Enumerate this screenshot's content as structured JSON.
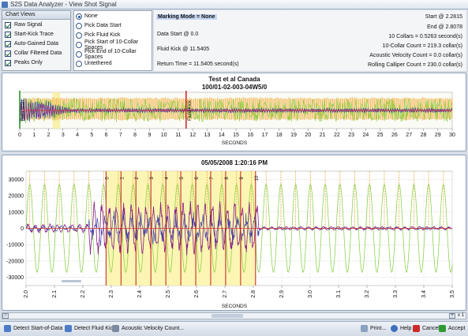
{
  "window": {
    "title": "S2S Data Analyzer - View Shot Signal"
  },
  "chart_views": {
    "header": "Chart Views",
    "items": [
      {
        "label": "Raw Signal",
        "checked": true
      },
      {
        "label": "Start-Kick Trace",
        "checked": true
      },
      {
        "label": "Auto-Gained Data",
        "checked": true
      },
      {
        "label": "Collar Filtered Data",
        "checked": true
      },
      {
        "label": "Peaks Only",
        "checked": true
      }
    ]
  },
  "marking": {
    "options": [
      {
        "label": "None",
        "selected": true
      },
      {
        "label": "Pick Data Start",
        "selected": false
      },
      {
        "label": "Pick Fluid Kick",
        "selected": false
      },
      {
        "label": "Pick Start of 10-Collar Spaces",
        "selected": false
      },
      {
        "label": "Pick End of 10-Collar Spaces",
        "selected": false
      },
      {
        "label": "Untethered",
        "selected": false
      }
    ]
  },
  "info": {
    "marking_mode": "Marking Mode = None",
    "data_start": "Data Start @ 0.0",
    "fluid_kick": "Fluid Kick @ 11.5405",
    "return_time": "Return Time = 11.5405 second(s)",
    "start": "Start @ 2.2815",
    "end": "End @ 2.8078",
    "collars": "10 Collars = 0.5263 second(s)",
    "collar_count": "10-Collar Count = 219.3 collar(s)",
    "acoustic_velocity": "Acoustic Velocity Count = 0.0 collar(s)",
    "rolling_caliper": "Rolling Calliper Count = 230.0 collar(s)"
  },
  "chart_data": [
    {
      "type": "line",
      "title": "Test et al Canada",
      "subtitle": "100/01-02-003-04W5/0",
      "xlabel": "SECONDS",
      "ylabel": "",
      "xlim": [
        0,
        30
      ],
      "x_ticks": [
        "0",
        "1",
        "2",
        "3",
        "4",
        "5",
        "6",
        "7",
        "8",
        "9",
        "10",
        "11",
        "12",
        "13",
        "14",
        "15",
        "16",
        "17",
        "18",
        "19",
        "20",
        "21",
        "22",
        "23",
        "24",
        "25",
        "26",
        "27",
        "28",
        "29",
        "30"
      ],
      "markers": [
        {
          "label": "Data Start",
          "x": 0.0
        },
        {
          "label": "Fluid Kick",
          "x": 11.5405
        }
      ],
      "highlight_x": [
        2.2815,
        2.8078
      ],
      "series": [
        {
          "color": "#f1b34a"
        },
        {
          "color": "#7fce3c"
        },
        {
          "color": "#2d3ea8"
        },
        {
          "color": "#8a1f8a"
        },
        {
          "color": "#d23a2a"
        }
      ]
    },
    {
      "type": "line",
      "title": "05/05/2008 1:20:16 PM",
      "xlabel": "SECONDS",
      "ylabel": "",
      "xlim": [
        2.0,
        3.5
      ],
      "ylim": [
        -35000,
        35000
      ],
      "x_ticks": [
        "2.0",
        "2.1",
        "2.2",
        "2.3",
        "2.4",
        "2.5",
        "2.6",
        "2.7",
        "2.8",
        "2.9",
        "3.0",
        "3.1",
        "3.2",
        "3.3",
        "3.4",
        "3.5"
      ],
      "y_ticks": [
        "30000",
        "20000",
        "10000",
        "0",
        "-10000",
        "-20000",
        "-30000"
      ],
      "highlight_x": [
        2.2815,
        2.8078
      ],
      "collar_markers": [
        "0",
        "1",
        "2",
        "3",
        "4",
        "5",
        "6",
        "7",
        "8",
        "9",
        "10"
      ],
      "series": [
        {
          "color": "#7fce3c"
        },
        {
          "color": "#e1ab30"
        },
        {
          "color": "#8a1f8a"
        },
        {
          "color": "#2d3ea8"
        },
        {
          "color": "#d23a2a"
        }
      ]
    }
  ],
  "scroll": {
    "zoom_label": "x 1"
  },
  "statusbar": {
    "detect_start": "Detect Start-of-Data",
    "detect_kick": "Detect Fluid Kick",
    "acoustic": "Acoustic Velocity Count...",
    "print": "Print...",
    "help": "Help",
    "cancel": "Cancel",
    "accept": "Accept"
  }
}
